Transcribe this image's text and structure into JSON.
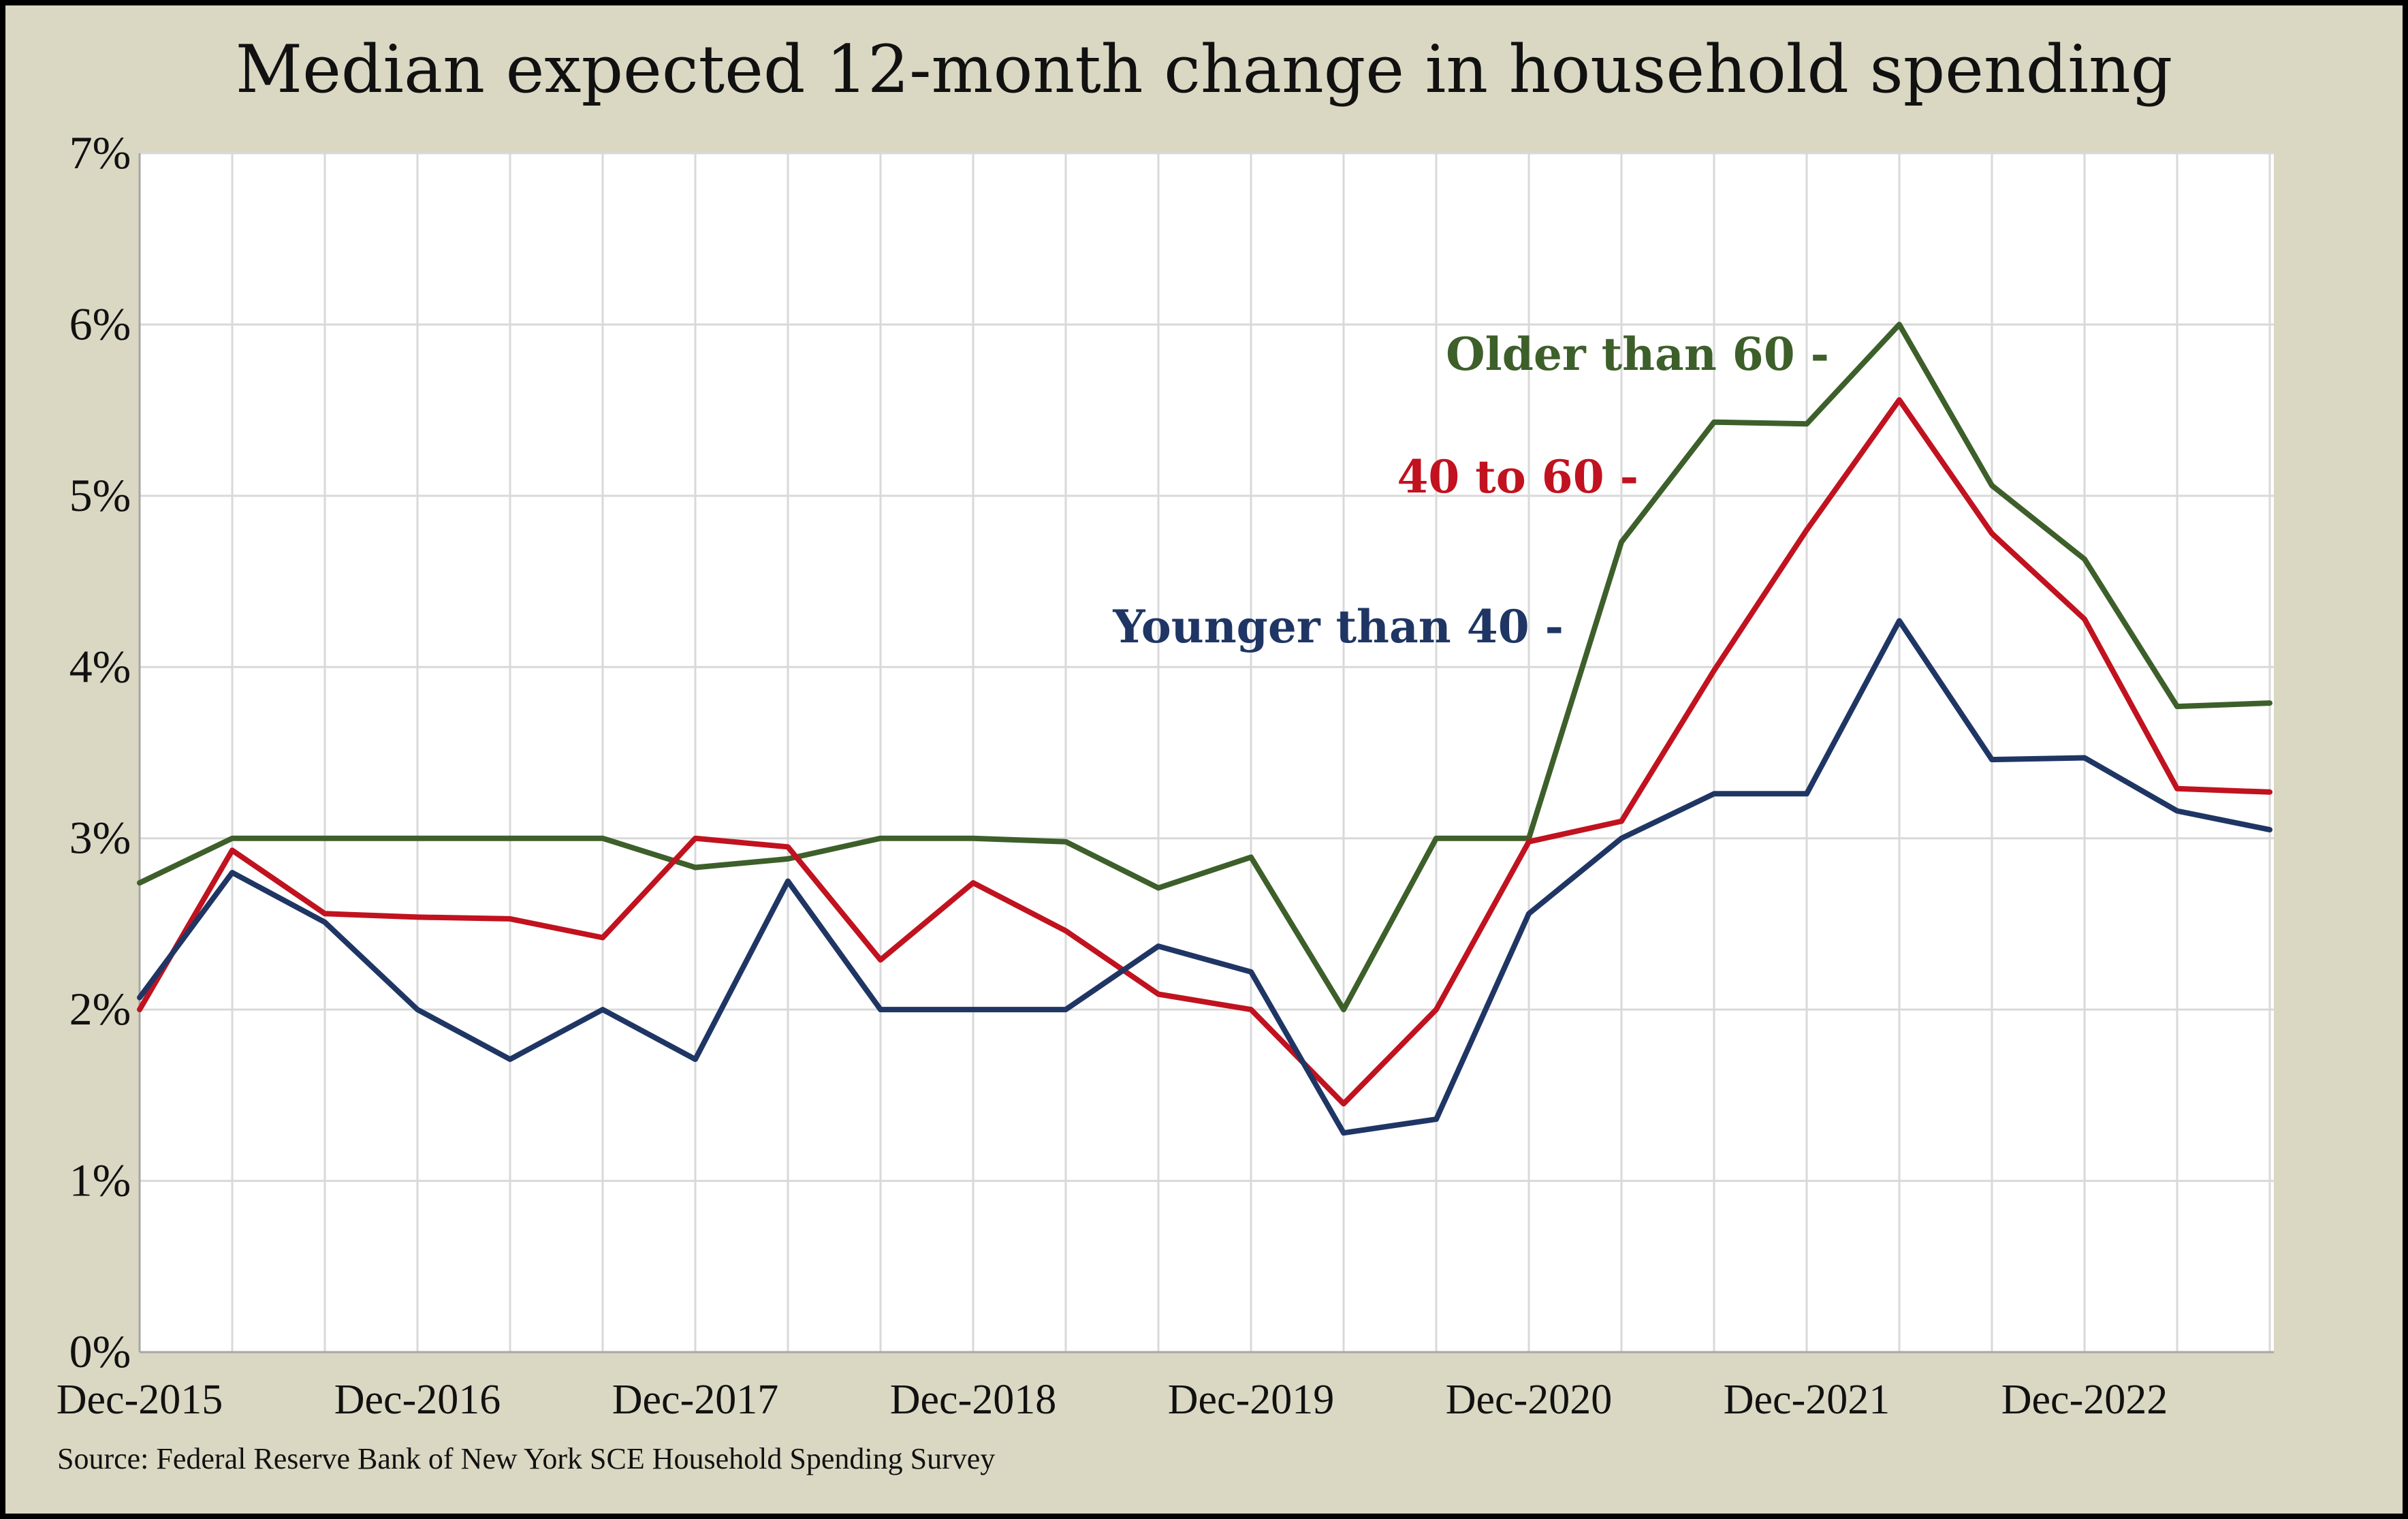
{
  "chart_data": {
    "type": "line",
    "title": "Median expected 12-month change in household spending",
    "xlabel": "",
    "ylabel": "",
    "ylim": [
      0,
      7
    ],
    "y_ticks": [
      "0%",
      "1%",
      "2%",
      "3%",
      "4%",
      "5%",
      "6%",
      "7%"
    ],
    "x_tick_labels": [
      "Dec-2015",
      "Dec-2016",
      "Dec-2017",
      "Dec-2018",
      "Dec-2019",
      "Dec-2020",
      "Dec-2021",
      "Dec-2022"
    ],
    "x": [
      "Dec-2015",
      "Apr-2016",
      "Aug-2016",
      "Dec-2016",
      "Apr-2017",
      "Aug-2017",
      "Dec-2017",
      "Apr-2018",
      "Aug-2018",
      "Dec-2018",
      "Apr-2019",
      "Aug-2019",
      "Dec-2019",
      "Apr-2020",
      "Aug-2020",
      "Dec-2020",
      "Apr-2021",
      "Aug-2021",
      "Dec-2021",
      "Apr-2022",
      "Aug-2022",
      "Dec-2022",
      "Apr-2023",
      "Aug-2023"
    ],
    "grid": true,
    "legend": "inline labels",
    "series": [
      {
        "name": "Older than 60 -",
        "color": "#3d5f2a",
        "values": [
          2.74,
          3.0,
          3.0,
          3.0,
          3.0,
          3.0,
          2.83,
          2.88,
          3.0,
          3.0,
          2.98,
          2.71,
          2.89,
          2.0,
          3.0,
          3.0,
          4.73,
          5.43,
          5.42,
          6.0,
          5.06,
          4.63,
          3.77,
          3.79
        ]
      },
      {
        "name": "40 to 60 -",
        "color": "#c1121f",
        "values": [
          2.0,
          2.93,
          2.56,
          2.54,
          2.53,
          2.42,
          3.0,
          2.95,
          2.29,
          2.74,
          2.46,
          2.09,
          2.0,
          1.45,
          2.0,
          2.98,
          3.1,
          3.98,
          4.8,
          5.56,
          4.78,
          4.28,
          3.29,
          3.27
        ]
      },
      {
        "name": "Younger than 40 -",
        "color": "#1f3664",
        "values": [
          2.07,
          2.8,
          2.51,
          2.0,
          1.71,
          2.0,
          1.71,
          2.75,
          2.0,
          2.0,
          2.0,
          2.37,
          2.22,
          1.28,
          1.36,
          2.56,
          3.0,
          3.26,
          3.26,
          4.27,
          3.46,
          3.47,
          3.16,
          3.05
        ]
      }
    ]
  },
  "source": "Source: Federal Reserve Bank of New York SCE Household Spending Survey"
}
